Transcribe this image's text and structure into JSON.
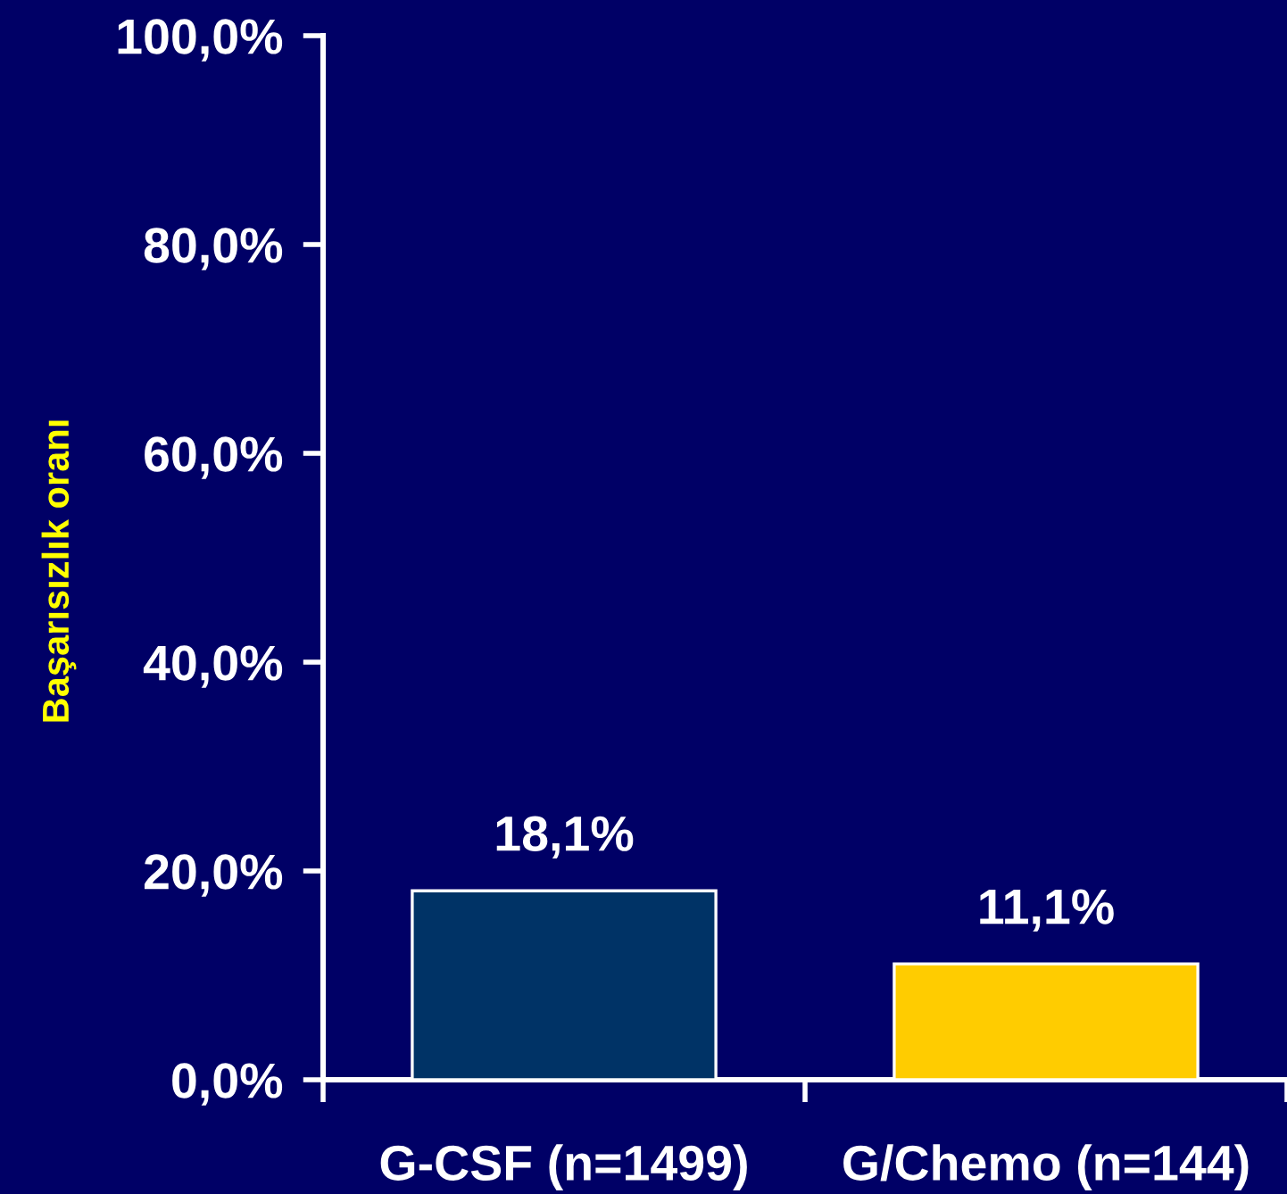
{
  "chart_data": {
    "type": "bar",
    "ylabel": "Başarısızlık oranı",
    "categories": [
      "G-CSF (n=1499)",
      "G/Chemo (n=144)"
    ],
    "values": [
      18.1,
      11.1
    ],
    "colors": [
      "#003366",
      "#ffcc00"
    ],
    "value_labels": [
      "18,1%",
      "11,1%"
    ],
    "ylim": [
      0,
      100
    ],
    "yticks": [
      {
        "value": 0,
        "label": "0,0%"
      },
      {
        "value": 20,
        "label": "20,0%"
      },
      {
        "value": 40,
        "label": "40,0%"
      },
      {
        "value": 60,
        "label": "60,0%"
      },
      {
        "value": 80,
        "label": "80,0%"
      },
      {
        "value": 100,
        "label": "100,0%"
      }
    ],
    "grid": false
  }
}
